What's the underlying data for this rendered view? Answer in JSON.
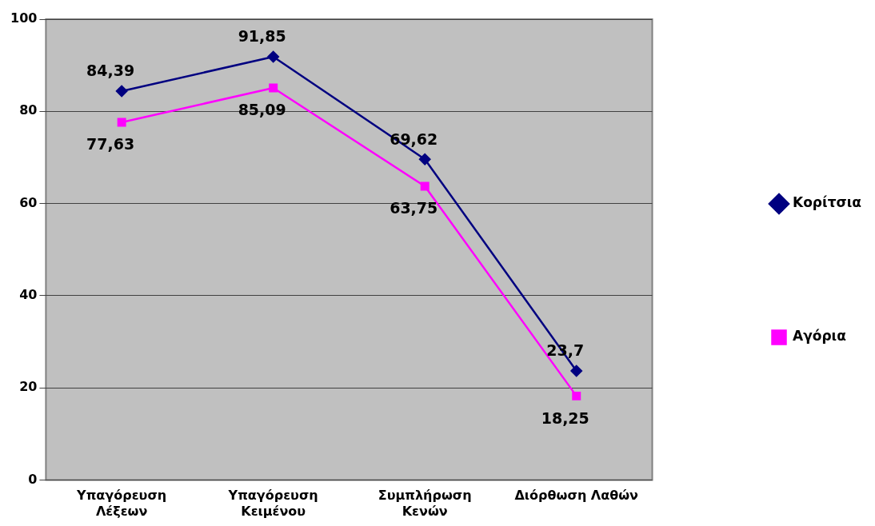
{
  "chart_data": {
    "type": "line",
    "categories": [
      "Υπαγόρευση Λέξεων",
      "Υπαγόρευση Κειμένου",
      "Συμπλήρωση Κενών",
      "Διόρθωση Λαθών"
    ],
    "series": [
      {
        "name": "Κορίτσια",
        "color": "#000080",
        "marker": "diamond",
        "values": [
          84.39,
          91.85,
          69.62,
          23.7
        ],
        "value_labels": [
          "84,39",
          "91,85",
          "69,62",
          "23,7"
        ]
      },
      {
        "name": "Αγόρια",
        "color": "#ff00ff",
        "marker": "square",
        "values": [
          77.63,
          85.09,
          63.75,
          18.25
        ],
        "value_labels": [
          "77,63",
          "85,09",
          "63,75",
          "18,25"
        ]
      }
    ],
    "ylim": [
      0,
      100
    ],
    "yticks": [
      0,
      20,
      40,
      60,
      80,
      100
    ],
    "grid": "y",
    "legend": "right"
  }
}
